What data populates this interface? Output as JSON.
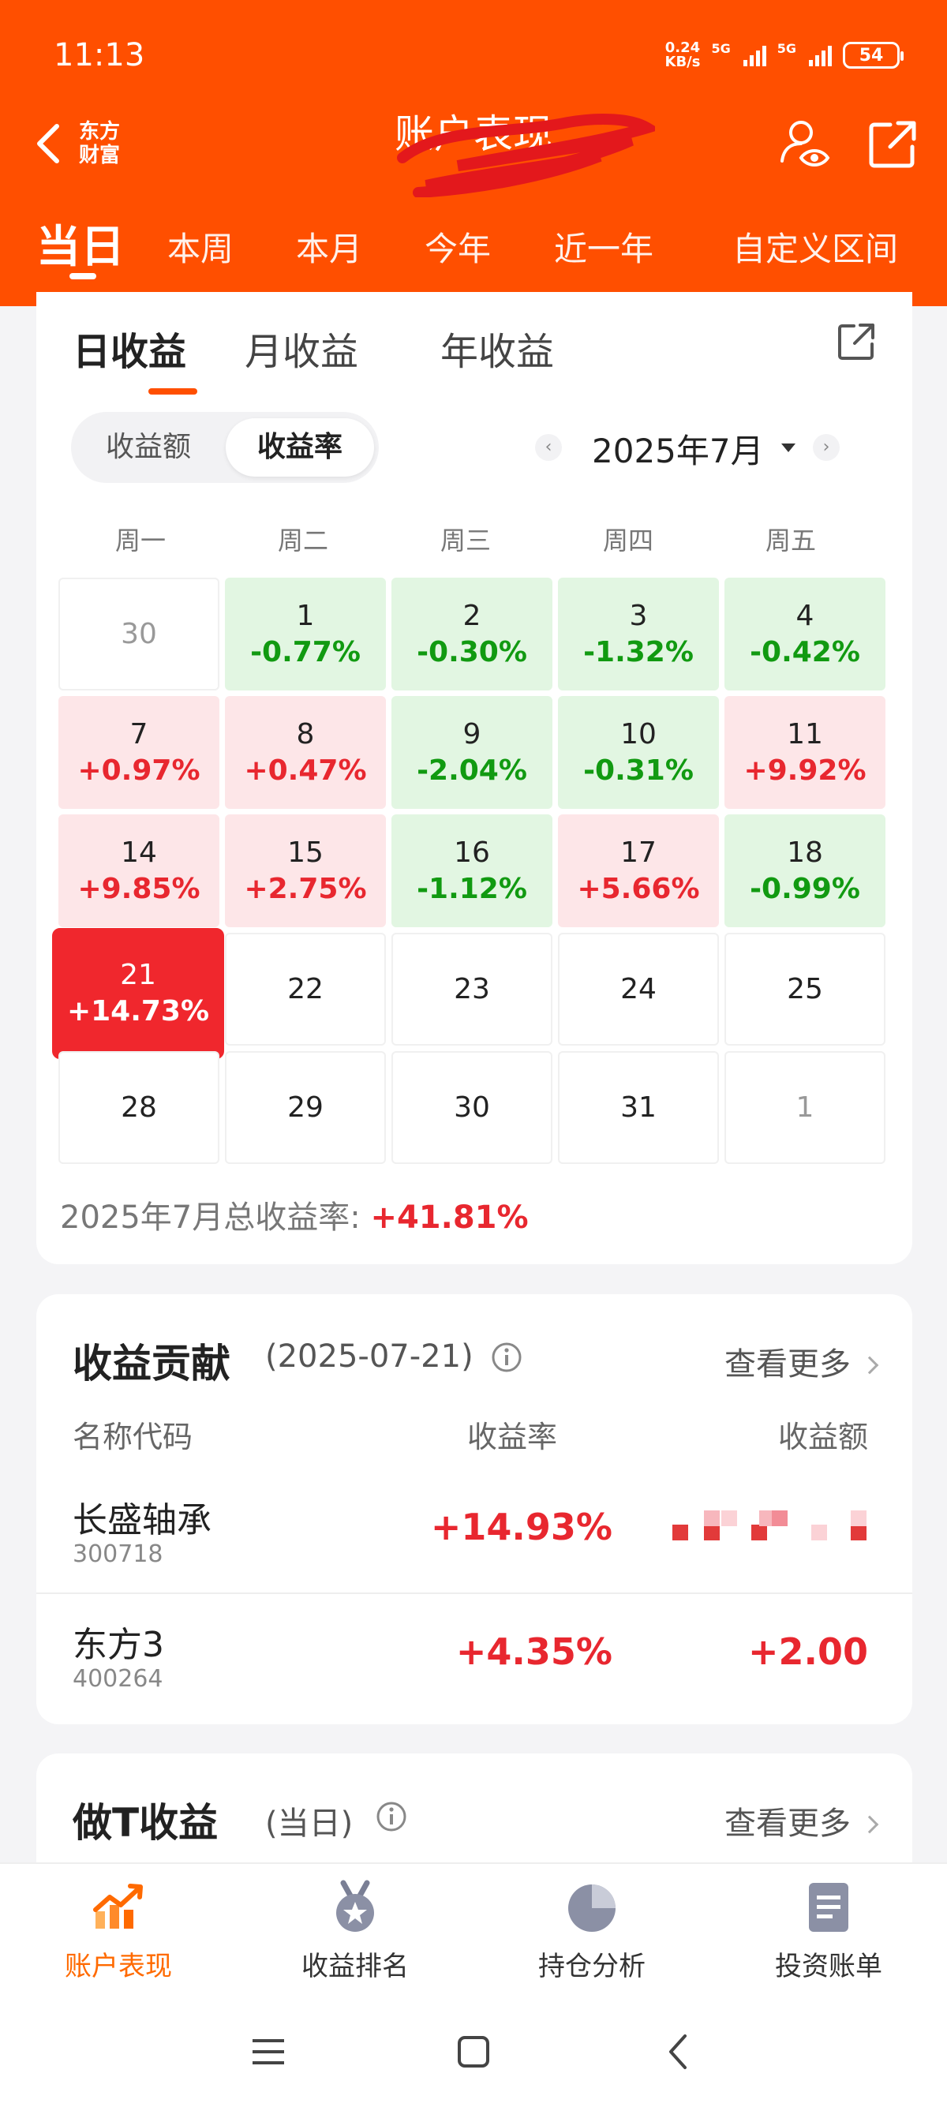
{
  "status_bar": {
    "time": "11:13",
    "net_speed": "0.24",
    "net_unit": "KB/s",
    "sig1": "5G",
    "sig2": "5G",
    "battery": "54"
  },
  "header": {
    "back_label": "",
    "logo_line1": "东方",
    "logo_line2": "财富",
    "title": "账户表现",
    "tabs": [
      {
        "label": "当日",
        "active": true
      },
      {
        "label": "本周"
      },
      {
        "label": "本月"
      },
      {
        "label": "今年"
      },
      {
        "label": "近一年"
      },
      {
        "label": "自定义区间"
      }
    ]
  },
  "calendar_card": {
    "subtabs": [
      {
        "label": "日收益",
        "active": true
      },
      {
        "label": "月收益"
      },
      {
        "label": "年收益"
      }
    ],
    "toggle": {
      "off_label": "收益额",
      "on_label": "收益率"
    },
    "month_label": "2025年7月",
    "prev_arrow": "‹",
    "next_arrow": "›",
    "weekdays": [
      "周一",
      "周二",
      "周三",
      "周四",
      "周五"
    ],
    "cells": [
      {
        "day": "30",
        "value": "",
        "style": "muted"
      },
      {
        "day": "1",
        "value": "-0.77%",
        "style": "green"
      },
      {
        "day": "2",
        "value": "-0.30%",
        "style": "green"
      },
      {
        "day": "3",
        "value": "-1.32%",
        "style": "green"
      },
      {
        "day": "4",
        "value": "-0.42%",
        "style": "green"
      },
      {
        "day": "7",
        "value": "+0.97%",
        "style": "pink"
      },
      {
        "day": "8",
        "value": "+0.47%",
        "style": "pink"
      },
      {
        "day": "9",
        "value": "-2.04%",
        "style": "green"
      },
      {
        "day": "10",
        "value": "-0.31%",
        "style": "green"
      },
      {
        "day": "11",
        "value": "+9.92%",
        "style": "pink"
      },
      {
        "day": "14",
        "value": "+9.85%",
        "style": "pink"
      },
      {
        "day": "15",
        "value": "+2.75%",
        "style": "pink"
      },
      {
        "day": "16",
        "value": "-1.12%",
        "style": "green"
      },
      {
        "day": "17",
        "value": "+5.66%",
        "style": "pink"
      },
      {
        "day": "18",
        "value": "-0.99%",
        "style": "green"
      },
      {
        "day": "21",
        "value": "+14.73%",
        "style": "sel"
      },
      {
        "day": "22",
        "value": "",
        "style": "plain"
      },
      {
        "day": "23",
        "value": "",
        "style": "plain"
      },
      {
        "day": "24",
        "value": "",
        "style": "plain"
      },
      {
        "day": "25",
        "value": "",
        "style": "plain"
      },
      {
        "day": "28",
        "value": "",
        "style": "plain"
      },
      {
        "day": "29",
        "value": "",
        "style": "plain"
      },
      {
        "day": "30",
        "value": "",
        "style": "plain"
      },
      {
        "day": "31",
        "value": "",
        "style": "plain"
      },
      {
        "day": "1",
        "value": "",
        "style": "muted"
      }
    ],
    "total_label": "2025年7月总收益率: ",
    "total_value": "+41.81%"
  },
  "contribution": {
    "title": "收益贡献",
    "date": "(2025-07-21)",
    "more_label": "查看更多",
    "columns": [
      "名称代码",
      "收益率",
      "收益额"
    ],
    "rows": [
      {
        "name": "长盛轴承",
        "code": "300718",
        "rate": "+14.93%",
        "amount": ""
      },
      {
        "name": "东方3",
        "code": "400264",
        "rate": "+4.35%",
        "amount": "+2.00"
      }
    ]
  },
  "do_t": {
    "title": "做T收益",
    "subtitle": "(当日)",
    "more_label": "查看更多"
  },
  "bottom_nav": [
    {
      "label": "账户表现",
      "icon": "trend-chart-icon",
      "active": true
    },
    {
      "label": "收益排名",
      "icon": "medal-icon"
    },
    {
      "label": "持仓分析",
      "icon": "pie-chart-icon"
    },
    {
      "label": "投资账单",
      "icon": "bill-icon"
    }
  ],
  "colors": {
    "brand": "#ff4f00",
    "gain": "#e8272f",
    "loss": "#119a11",
    "gain_bg": "#fde6e8",
    "loss_bg": "#e2f6e2",
    "selected": "#f0272d"
  }
}
